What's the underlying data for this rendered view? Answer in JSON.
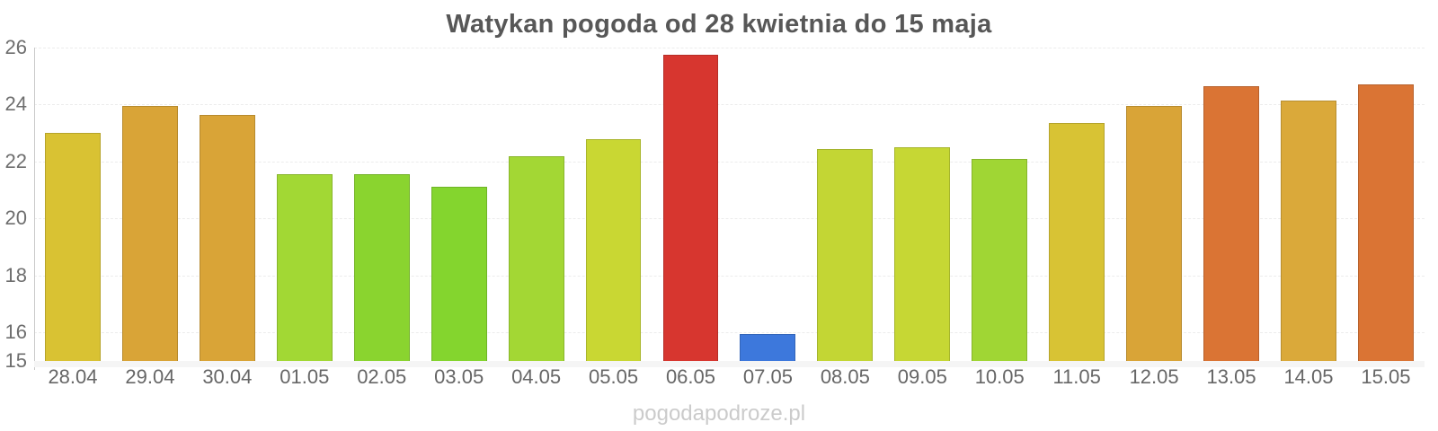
{
  "chart_data": {
    "type": "bar",
    "title": "Watykan pogoda od 28 kwietnia do 15 maja",
    "categories": [
      "28.04",
      "29.04",
      "30.04",
      "01.05",
      "02.05",
      "03.05",
      "04.05",
      "05.05",
      "06.05",
      "07.05",
      "08.05",
      "09.05",
      "10.05",
      "11.05",
      "12.05",
      "13.05",
      "14.05",
      "15.05"
    ],
    "values": [
      23.0,
      23.95,
      23.65,
      21.55,
      21.55,
      21.1,
      22.2,
      22.8,
      25.75,
      15.95,
      22.45,
      22.5,
      22.1,
      23.35,
      23.95,
      24.65,
      24.15,
      24.7
    ],
    "bar_colors": [
      "#d9c233",
      "#d9a437",
      "#d9a437",
      "#a2d834",
      "#8ad42f",
      "#84d52e",
      "#a3d734",
      "#c9d733",
      "#d7362f",
      "#3d78dc",
      "#c3d634",
      "#c6d734",
      "#a0d634",
      "#d8c334",
      "#d9a437",
      "#da7434",
      "#daa93a",
      "#da7434"
    ],
    "xlabel": "",
    "ylabel": "",
    "ylim": [
      15,
      26
    ],
    "yticks": [
      15,
      16,
      18,
      20,
      22,
      24,
      26
    ],
    "grid": true,
    "legend": false,
    "watermark": "pogodapodroze.pl"
  },
  "styles": {
    "title_color": "#575757",
    "axis_line_color": "#c9c9c9",
    "grid_color": "#ececec",
    "y_tick_label_color": "#6e6e6e",
    "x_tick_label_color": "#666666",
    "watermark_color": "#cbcbcb",
    "baseline_band_color": "#f5f5f5",
    "background_color": "#ffffff"
  }
}
